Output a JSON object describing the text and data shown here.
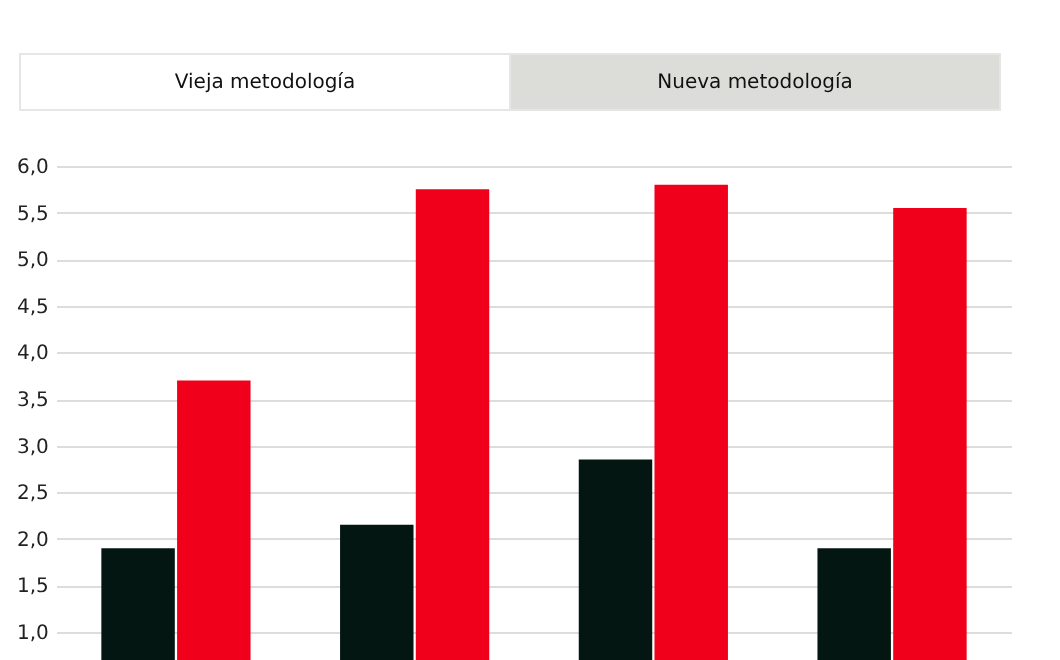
{
  "chart_data": {
    "type": "bar",
    "categories": [
      null,
      null,
      null,
      null
    ],
    "series": [
      {
        "color": "#041612",
        "values": [
          1.9,
          2.15,
          2.85,
          1.9
        ]
      },
      {
        "color": "#f0001a",
        "values": [
          3.7,
          5.75,
          5.8,
          5.55
        ]
      }
    ],
    "ylim": [
      0.7,
      6.0
    ],
    "yticks": [
      {
        "value": 1.0,
        "label": "1,0"
      },
      {
        "value": 1.5,
        "label": "1,5"
      },
      {
        "value": 2.0,
        "label": "2,0"
      },
      {
        "value": 2.5,
        "label": "2,5"
      },
      {
        "value": 3.0,
        "label": "3,0"
      },
      {
        "value": 3.5,
        "label": "3,5"
      },
      {
        "value": 4.0,
        "label": "4,0"
      },
      {
        "value": 4.5,
        "label": "4,5"
      },
      {
        "value": 5.0,
        "label": "5,0"
      },
      {
        "value": 5.5,
        "label": "5,5"
      },
      {
        "value": 6.0,
        "label": "6,0"
      }
    ],
    "grid": "y",
    "legend": false,
    "tick_labels": "y",
    "annotations": [
      "Vieja metodología",
      "Nueva metodología"
    ]
  }
}
